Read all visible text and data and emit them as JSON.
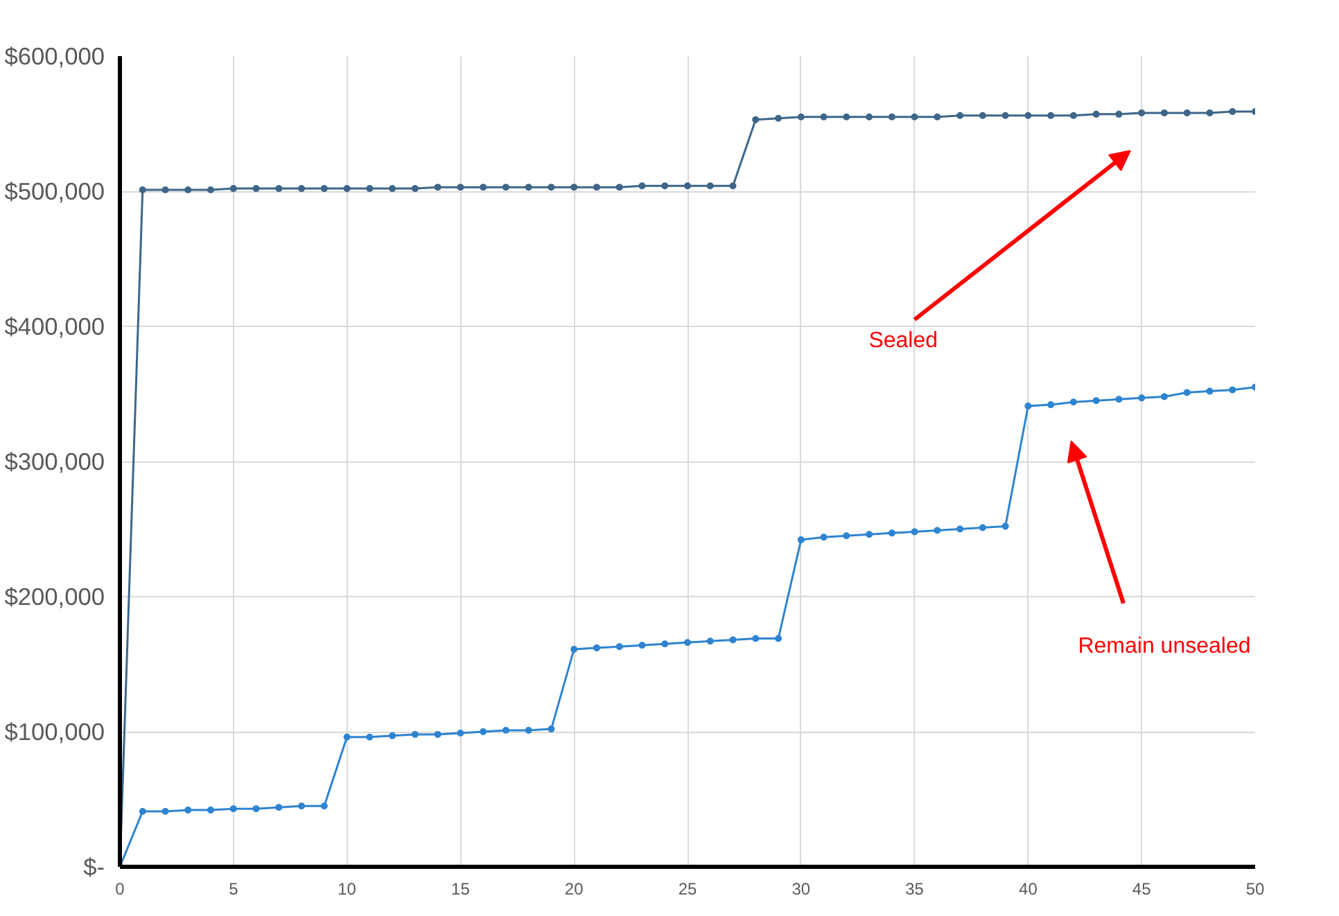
{
  "chart_data": {
    "type": "line",
    "x": [
      0,
      1,
      2,
      3,
      4,
      5,
      6,
      7,
      8,
      9,
      10,
      11,
      12,
      13,
      14,
      15,
      16,
      17,
      18,
      19,
      20,
      21,
      22,
      23,
      24,
      25,
      26,
      27,
      28,
      29,
      30,
      31,
      32,
      33,
      34,
      35,
      36,
      37,
      38,
      39,
      40,
      41,
      42,
      43,
      44,
      45,
      46,
      47,
      48,
      49,
      50
    ],
    "series": [
      {
        "color": "#3d6689",
        "values": [
          0,
          501000,
          501000,
          501000,
          501000,
          502000,
          502000,
          502000,
          502000,
          502000,
          502000,
          502000,
          502000,
          502000,
          503000,
          503000,
          503000,
          503000,
          503000,
          503000,
          503000,
          503000,
          503000,
          504000,
          504000,
          504000,
          504000,
          504000,
          553000,
          554000,
          555000,
          555000,
          555000,
          555000,
          555000,
          555000,
          555000,
          556000,
          556000,
          556000,
          556000,
          556000,
          556000,
          557000,
          557000,
          558000,
          558000,
          558000,
          558000,
          559000,
          559000
        ]
      },
      {
        "color": "#2e84d0",
        "values": [
          0,
          41000,
          41000,
          42000,
          42000,
          43000,
          43000,
          44000,
          45000,
          45000,
          96000,
          96000,
          97000,
          98000,
          98000,
          99000,
          100000,
          101000,
          101000,
          102000,
          161000,
          162000,
          163000,
          164000,
          165000,
          166000,
          167000,
          168000,
          169000,
          169000,
          242000,
          244000,
          245000,
          246000,
          247000,
          248000,
          249000,
          250000,
          251000,
          252000,
          341000,
          342000,
          344000,
          345000,
          346000,
          347000,
          348000,
          351000,
          352000,
          353000,
          355000
        ]
      }
    ],
    "xlim": [
      0,
      50
    ],
    "xticks": [
      0,
      5,
      10,
      15,
      20,
      25,
      30,
      35,
      40,
      45,
      50
    ],
    "ylim": [
      0,
      600000
    ],
    "yticks": [
      {
        "value": 0,
        "label": "$-"
      },
      {
        "value": 100000,
        "label": "$100,000"
      },
      {
        "value": 200000,
        "label": "$200,000"
      },
      {
        "value": 300000,
        "label": "$300,000"
      },
      {
        "value": 400000,
        "label": "$400,000"
      },
      {
        "value": 500000,
        "label": "$500,000"
      },
      {
        "value": 600000,
        "label": "$600,000"
      }
    ],
    "grid": true,
    "marker": "circle",
    "line_style": "solid",
    "annotations": [
      "Sealed",
      "Remain unsealed"
    ]
  }
}
